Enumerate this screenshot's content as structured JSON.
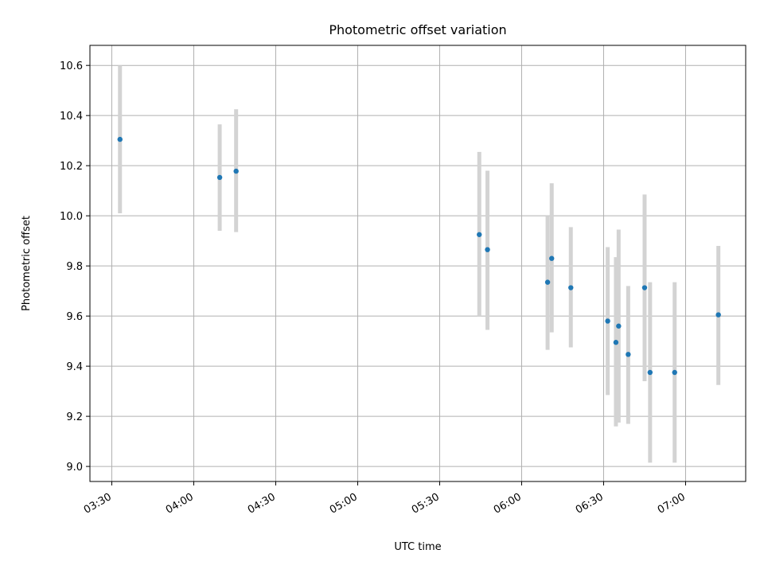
{
  "chart_data": {
    "type": "scatter",
    "title": "Photometric offset variation",
    "xlabel": "UTC time",
    "ylabel": "Photometric offset",
    "x_tick_labels": [
      "03:30",
      "04:00",
      "04:30",
      "05:00",
      "05:30",
      "06:00",
      "06:30",
      "07:00"
    ],
    "x_ticks_minutes": [
      210,
      240,
      270,
      300,
      330,
      360,
      390,
      420
    ],
    "xlim_minutes": [
      202,
      442
    ],
    "ylim": [
      8.94,
      10.68
    ],
    "y_ticks": [
      9.0,
      9.2,
      9.4,
      9.6,
      9.8,
      10.0,
      10.2,
      10.4,
      10.6
    ],
    "y_tick_labels": [
      "9.0",
      "9.2",
      "9.4",
      "9.6",
      "9.8",
      "10.0",
      "10.2",
      "10.4",
      "10.6"
    ],
    "grid": true,
    "colors": {
      "point": "#1f77b4",
      "errorbar": "#d3d3d3"
    },
    "points": [
      {
        "t_minutes": 213,
        "y": 10.305,
        "low": 10.01,
        "high": 10.6
      },
      {
        "t_minutes": 249.5,
        "y": 10.153,
        "low": 9.94,
        "high": 10.365
      },
      {
        "t_minutes": 255.5,
        "y": 10.178,
        "low": 9.935,
        "high": 10.425
      },
      {
        "t_minutes": 344.5,
        "y": 9.925,
        "low": 9.6,
        "high": 10.255
      },
      {
        "t_minutes": 347.5,
        "y": 9.865,
        "low": 9.545,
        "high": 10.18
      },
      {
        "t_minutes": 369.5,
        "y": 9.735,
        "low": 9.465,
        "high": 10.0
      },
      {
        "t_minutes": 371,
        "y": 9.83,
        "low": 9.535,
        "high": 10.13
      },
      {
        "t_minutes": 378,
        "y": 9.713,
        "low": 9.475,
        "high": 9.955
      },
      {
        "t_minutes": 391.5,
        "y": 9.58,
        "low": 9.285,
        "high": 9.875
      },
      {
        "t_minutes": 394.5,
        "y": 9.495,
        "low": 9.16,
        "high": 9.835
      },
      {
        "t_minutes": 395.5,
        "y": 9.56,
        "low": 9.175,
        "high": 9.945
      },
      {
        "t_minutes": 399,
        "y": 9.447,
        "low": 9.17,
        "high": 9.72
      },
      {
        "t_minutes": 405,
        "y": 9.713,
        "low": 9.34,
        "high": 10.085
      },
      {
        "t_minutes": 407,
        "y": 9.375,
        "low": 9.015,
        "high": 9.735
      },
      {
        "t_minutes": 416,
        "y": 9.375,
        "low": 9.015,
        "high": 9.735
      },
      {
        "t_minutes": 432,
        "y": 9.605,
        "low": 9.325,
        "high": 9.88
      }
    ]
  }
}
